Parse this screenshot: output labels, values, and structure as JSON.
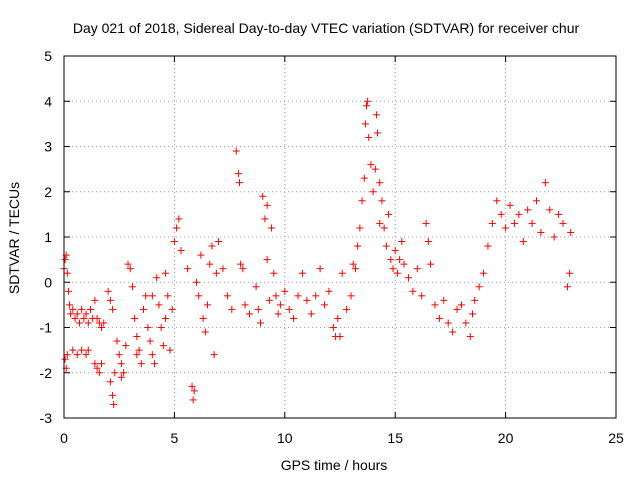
{
  "chart_data": {
    "type": "scatter",
    "title": "Day 021 of 2018, Sidereal Day-to-day VTEC variation (SDTVAR) for receiver chur",
    "xlabel": "GPS time / hours",
    "ylabel": "SDTVAR / TECUs",
    "xlim": [
      0,
      25
    ],
    "ylim": [
      -3,
      5
    ],
    "xticks": [
      "0",
      "5",
      "10",
      "15",
      "20",
      "25"
    ],
    "yticks": [
      "-3",
      "-2",
      "-1",
      "0",
      "1",
      "2",
      "3",
      "4",
      "5"
    ],
    "grid": true,
    "marker": "+",
    "marker_color": "#ff0000",
    "series": [
      {
        "name": "SDTVAR",
        "points": [
          [
            0.0,
            0.3
          ],
          [
            0.05,
            0.5
          ],
          [
            0.1,
            0.6
          ],
          [
            0.15,
            0.2
          ],
          [
            0.2,
            -0.2
          ],
          [
            0.25,
            -0.5
          ],
          [
            0.3,
            -0.7
          ],
          [
            0.4,
            -0.6
          ],
          [
            0.5,
            -0.8
          ],
          [
            0.6,
            -0.7
          ],
          [
            0.7,
            -0.9
          ],
          [
            0.8,
            -0.6
          ],
          [
            0.9,
            -0.8
          ],
          [
            1.0,
            -0.7
          ],
          [
            1.1,
            -0.9
          ],
          [
            1.2,
            -0.6
          ],
          [
            1.3,
            -0.8
          ],
          [
            1.4,
            -0.4
          ],
          [
            1.5,
            -0.8
          ],
          [
            1.6,
            -0.9
          ],
          [
            1.7,
            -1.0
          ],
          [
            1.8,
            -0.9
          ],
          [
            0.05,
            -1.7
          ],
          [
            0.1,
            -1.9
          ],
          [
            0.15,
            -1.6
          ],
          [
            0.4,
            -1.5
          ],
          [
            0.6,
            -1.6
          ],
          [
            0.8,
            -1.5
          ],
          [
            1.0,
            -1.6
          ],
          [
            1.1,
            -1.5
          ],
          [
            1.4,
            -1.8
          ],
          [
            1.5,
            -1.9
          ],
          [
            1.6,
            -2.0
          ],
          [
            1.7,
            -1.8
          ],
          [
            2.0,
            -0.2
          ],
          [
            2.1,
            -0.4
          ],
          [
            2.2,
            -0.6
          ],
          [
            2.1,
            -2.2
          ],
          [
            2.2,
            -2.5
          ],
          [
            2.25,
            -2.7
          ],
          [
            2.3,
            -2.0
          ],
          [
            2.4,
            -1.3
          ],
          [
            2.5,
            -1.6
          ],
          [
            2.6,
            -1.8
          ],
          [
            2.7,
            -2.0
          ],
          [
            2.8,
            -1.4
          ],
          [
            2.9,
            0.4
          ],
          [
            3.0,
            0.3
          ],
          [
            3.1,
            -0.1
          ],
          [
            3.2,
            -0.8
          ],
          [
            3.3,
            -1.2
          ],
          [
            3.4,
            -1.5
          ],
          [
            3.5,
            -1.8
          ],
          [
            3.6,
            -0.6
          ],
          [
            3.7,
            -0.3
          ],
          [
            3.8,
            -1.0
          ],
          [
            3.9,
            -1.3
          ],
          [
            4.0,
            -1.6
          ],
          [
            4.1,
            -1.8
          ],
          [
            4.0,
            -0.3
          ],
          [
            4.2,
            0.1
          ],
          [
            4.3,
            -0.5
          ],
          [
            4.4,
            -1.0
          ],
          [
            4.5,
            -1.4
          ],
          [
            4.6,
            -0.8
          ],
          [
            4.6,
            0.2
          ],
          [
            4.7,
            -0.3
          ],
          [
            4.8,
            -1.5
          ],
          [
            4.9,
            -0.6
          ],
          [
            5.0,
            0.9
          ],
          [
            5.1,
            1.2
          ],
          [
            5.2,
            1.4
          ],
          [
            5.3,
            0.7
          ],
          [
            5.6,
            0.3
          ],
          [
            5.8,
            -2.3
          ],
          [
            5.85,
            -2.6
          ],
          [
            5.9,
            -2.4
          ],
          [
            6.0,
            0.0
          ],
          [
            6.1,
            -0.3
          ],
          [
            6.2,
            0.6
          ],
          [
            6.3,
            -0.8
          ],
          [
            6.4,
            -1.1
          ],
          [
            6.5,
            -0.5
          ],
          [
            6.6,
            0.4
          ],
          [
            6.7,
            0.8
          ],
          [
            6.8,
            -1.6
          ],
          [
            6.9,
            0.2
          ],
          [
            7.0,
            0.9
          ],
          [
            7.2,
            0.3
          ],
          [
            7.4,
            -0.3
          ],
          [
            7.6,
            -0.6
          ],
          [
            7.8,
            2.9
          ],
          [
            7.9,
            2.4
          ],
          [
            7.95,
            2.2
          ],
          [
            8.0,
            0.4
          ],
          [
            8.1,
            0.3
          ],
          [
            8.2,
            -0.5
          ],
          [
            8.4,
            -0.7
          ],
          [
            8.7,
            -0.1
          ],
          [
            8.8,
            -0.6
          ],
          [
            8.9,
            -0.9
          ],
          [
            9.0,
            1.9
          ],
          [
            9.1,
            1.4
          ],
          [
            9.2,
            0.5
          ],
          [
            9.3,
            -0.4
          ],
          [
            9.4,
            1.2
          ],
          [
            9.5,
            0.2
          ],
          [
            9.6,
            -0.3
          ],
          [
            9.7,
            -0.7
          ],
          [
            9.8,
            -0.5
          ],
          [
            10.0,
            -0.2
          ],
          [
            10.2,
            -0.6
          ],
          [
            10.4,
            -0.8
          ],
          [
            10.6,
            -0.3
          ],
          [
            10.8,
            0.2
          ],
          [
            11.0,
            -0.4
          ],
          [
            11.2,
            -0.7
          ],
          [
            11.4,
            -0.3
          ],
          [
            11.6,
            0.3
          ],
          [
            11.8,
            -0.5
          ],
          [
            12.0,
            -0.2
          ],
          [
            12.2,
            -1.0
          ],
          [
            12.3,
            -1.2
          ],
          [
            12.4,
            -0.8
          ],
          [
            12.6,
            0.2
          ],
          [
            12.8,
            -0.6
          ],
          [
            13.0,
            -0.3
          ],
          [
            13.1,
            0.4
          ],
          [
            13.2,
            0.3
          ],
          [
            13.3,
            0.8
          ],
          [
            13.4,
            1.2
          ],
          [
            13.5,
            1.8
          ],
          [
            13.6,
            2.3
          ],
          [
            13.65,
            3.5
          ],
          [
            13.7,
            3.9
          ],
          [
            13.75,
            4.0
          ],
          [
            13.8,
            3.2
          ],
          [
            13.9,
            2.6
          ],
          [
            14.0,
            2.0
          ],
          [
            14.1,
            2.5
          ],
          [
            14.15,
            3.7
          ],
          [
            14.2,
            3.3
          ],
          [
            14.3,
            2.2
          ],
          [
            14.4,
            1.8
          ],
          [
            14.5,
            1.2
          ],
          [
            14.6,
            0.8
          ],
          [
            14.7,
            1.5
          ],
          [
            14.8,
            0.5
          ],
          [
            14.9,
            0.3
          ],
          [
            15.0,
            0.7
          ],
          [
            15.1,
            0.2
          ],
          [
            15.2,
            0.5
          ],
          [
            15.3,
            0.9
          ],
          [
            15.4,
            0.4
          ],
          [
            15.6,
            0.1
          ],
          [
            15.8,
            -0.2
          ],
          [
            16.0,
            0.3
          ],
          [
            16.2,
            -0.3
          ],
          [
            16.4,
            1.3
          ],
          [
            16.5,
            0.9
          ],
          [
            16.6,
            0.4
          ],
          [
            16.8,
            -0.5
          ],
          [
            17.0,
            -0.8
          ],
          [
            17.2,
            -0.4
          ],
          [
            17.4,
            -0.9
          ],
          [
            17.6,
            -1.1
          ],
          [
            17.8,
            -0.6
          ],
          [
            18.0,
            -0.5
          ],
          [
            18.2,
            -0.9
          ],
          [
            18.4,
            -1.2
          ],
          [
            18.5,
            -0.7
          ],
          [
            18.6,
            -0.4
          ],
          [
            18.8,
            -0.1
          ],
          [
            19.0,
            0.2
          ],
          [
            19.2,
            0.8
          ],
          [
            19.4,
            1.3
          ],
          [
            19.6,
            1.8
          ],
          [
            19.8,
            1.5
          ],
          [
            20.0,
            1.2
          ],
          [
            20.2,
            1.7
          ],
          [
            20.4,
            1.3
          ],
          [
            20.6,
            1.5
          ],
          [
            20.8,
            0.9
          ],
          [
            21.0,
            1.6
          ],
          [
            21.2,
            1.3
          ],
          [
            21.4,
            1.8
          ],
          [
            21.6,
            1.1
          ],
          [
            21.8,
            2.2
          ],
          [
            22.0,
            1.6
          ],
          [
            22.2,
            1.0
          ],
          [
            22.4,
            1.5
          ],
          [
            22.6,
            1.3
          ],
          [
            22.8,
            -0.1
          ],
          [
            22.9,
            0.2
          ],
          [
            22.95,
            1.1
          ],
          [
            12.5,
            -1.2
          ],
          [
            3.3,
            -1.6
          ],
          [
            2.6,
            -2.1
          ],
          [
            9.2,
            1.7
          ],
          [
            14.3,
            1.3
          ]
        ]
      }
    ]
  }
}
